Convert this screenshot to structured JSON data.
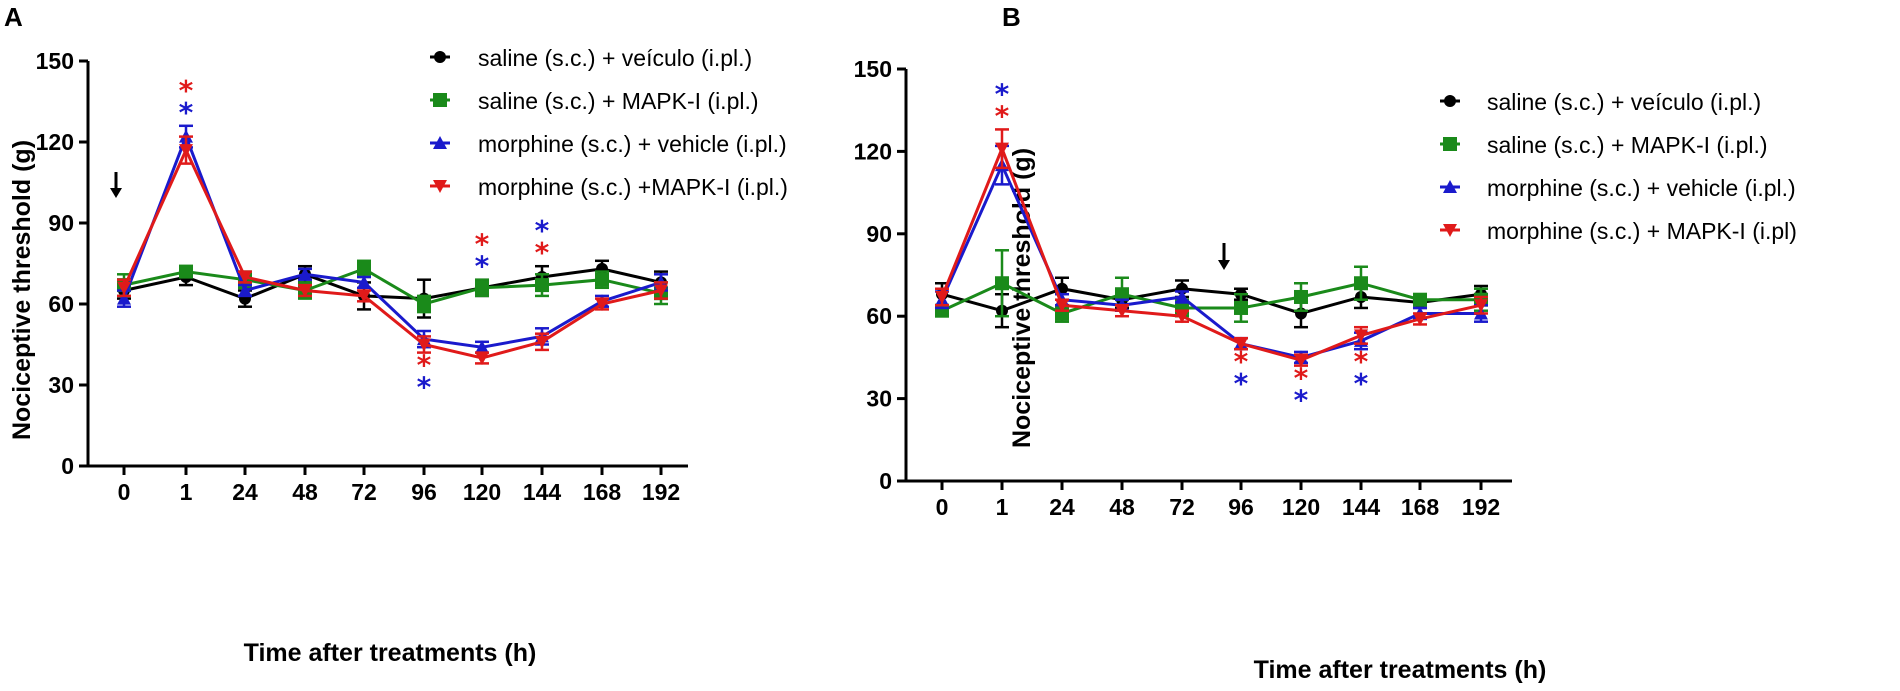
{
  "chart_data": [
    {
      "type": "line",
      "panel_label": "A",
      "categories": [
        "0",
        "1",
        "24",
        "48",
        "72",
        "96",
        "120",
        "144",
        "168",
        "192"
      ],
      "ylabel": "Nociceptive threshold (g)",
      "xlabel": "Time after treatments (h)",
      "ylim": [
        0,
        150
      ],
      "yticks": [
        "0",
        "30",
        "60",
        "90",
        "120",
        "150"
      ],
      "arrow_at": "0",
      "series": [
        {
          "name": "saline (s.c.) + veículo (i.pl.)",
          "color": "#000000",
          "marker": "circle",
          "values": [
            65,
            70,
            62,
            71,
            63,
            62,
            66,
            70,
            73,
            68
          ],
          "errors": [
            3,
            3,
            3,
            3,
            5,
            7,
            3,
            4,
            3,
            4
          ]
        },
        {
          "name": "saline (s.c.) + MAPK-I (i.pl.)",
          "color": "#1a8a1a",
          "marker": "square",
          "values": [
            67,
            72,
            69,
            65,
            73,
            60,
            66,
            67,
            69,
            64
          ],
          "errors": [
            4,
            2,
            3,
            3,
            3,
            3,
            3,
            4,
            3,
            4
          ]
        },
        {
          "name": "morphine (s.c.) + vehicle (i.pl.)",
          "color": "#1a1acc",
          "marker": "triangle-up",
          "values": [
            62,
            122,
            65,
            71,
            68,
            47,
            44,
            48,
            61,
            68
          ],
          "errors": [
            3,
            4,
            2,
            2,
            2,
            3,
            2,
            3,
            2,
            3
          ]
        },
        {
          "name": "morphine (s.c.) +MAPK-I (i.pl.)",
          "color": "#e01a1a",
          "marker": "triangle-down",
          "values": [
            66,
            117,
            70,
            65,
            63,
            45,
            40,
            46,
            60,
            65
          ],
          "errors": [
            3,
            5,
            2,
            2,
            2,
            3,
            2,
            3,
            2,
            3
          ]
        }
      ],
      "annotations": [
        {
          "category": "1",
          "text": "*",
          "color": "#e01a1a",
          "level": 2,
          "side": "above"
        },
        {
          "category": "1",
          "text": "*",
          "color": "#1a1acc",
          "level": 1,
          "side": "above"
        },
        {
          "category": "96",
          "text": "*",
          "color": "#e01a1a",
          "level": 1,
          "side": "below"
        },
        {
          "category": "96",
          "text": "*",
          "color": "#1a1acc",
          "level": 2,
          "side": "below"
        },
        {
          "category": "120",
          "text": "*",
          "color": "#e01a1a",
          "level": 2,
          "side": "above"
        },
        {
          "category": "120",
          "text": "*",
          "color": "#1a1acc",
          "level": 1,
          "side": "above"
        },
        {
          "category": "144",
          "text": "*",
          "color": "#1a1acc",
          "level": 2,
          "side": "above"
        },
        {
          "category": "144",
          "text": "*",
          "color": "#e01a1a",
          "level": 1,
          "side": "above"
        }
      ]
    },
    {
      "type": "line",
      "panel_label": "B",
      "categories": [
        "0",
        "1",
        "24",
        "48",
        "72",
        "96",
        "120",
        "144",
        "168",
        "192"
      ],
      "ylabel": "Nociceptive threshold (g)",
      "xlabel": "Time after treatments (h)",
      "ylim": [
        0,
        150
      ],
      "yticks": [
        "0",
        "30",
        "60",
        "90",
        "120",
        "150"
      ],
      "arrow_at": "between 72 and 96",
      "series": [
        {
          "name": "saline (s.c.) + veículo (i.pl.)",
          "color": "#000000",
          "marker": "circle",
          "values": [
            68,
            62,
            70,
            66,
            70,
            68,
            61,
            67,
            65,
            68
          ],
          "errors": [
            4,
            6,
            4,
            3,
            3,
            2,
            5,
            4,
            2,
            3
          ]
        },
        {
          "name": "saline (s.c.) + MAPK-I (i.pl.)",
          "color": "#1a8a1a",
          "marker": "square",
          "values": [
            62,
            72,
            61,
            68,
            63,
            63,
            67,
            72,
            66,
            66
          ],
          "errors": [
            2,
            12,
            3,
            6,
            3,
            5,
            5,
            6,
            2,
            4
          ]
        },
        {
          "name": "morphine (s.c.) +  vehicle (i.pl.)",
          "color": "#1a1acc",
          "marker": "triangle-up",
          "values": [
            66,
            115,
            66,
            64,
            67,
            50,
            45,
            51,
            61,
            61
          ],
          "errors": [
            3,
            7,
            2,
            2,
            2,
            2,
            2,
            3,
            2,
            3
          ]
        },
        {
          "name": "morphine (s.c.) + MAPK-I (i.pl)",
          "color": "#e01a1a",
          "marker": "triangle-down",
          "values": [
            67,
            121,
            64,
            62,
            60,
            50,
            44,
            53,
            59,
            64
          ],
          "errors": [
            3,
            7,
            2,
            2,
            2,
            2,
            2,
            3,
            2,
            3
          ]
        }
      ],
      "annotations": [
        {
          "category": "1",
          "text": "*",
          "color": "#1a1acc",
          "level": 2,
          "side": "above"
        },
        {
          "category": "1",
          "text": "*",
          "color": "#e01a1a",
          "level": 1,
          "side": "above"
        },
        {
          "category": "96",
          "text": "*",
          "color": "#e01a1a",
          "level": 1,
          "side": "below"
        },
        {
          "category": "96",
          "text": "*",
          "color": "#1a1acc",
          "level": 2,
          "side": "below"
        },
        {
          "category": "120",
          "text": "*",
          "color": "#e01a1a",
          "level": 1,
          "side": "below"
        },
        {
          "category": "120",
          "text": "*",
          "color": "#1a1acc",
          "level": 2,
          "side": "below"
        },
        {
          "category": "144",
          "text": "*",
          "color": "#e01a1a",
          "level": 1,
          "side": "below"
        },
        {
          "category": "144",
          "text": "*",
          "color": "#1a1acc",
          "level": 2,
          "side": "below"
        }
      ]
    }
  ]
}
